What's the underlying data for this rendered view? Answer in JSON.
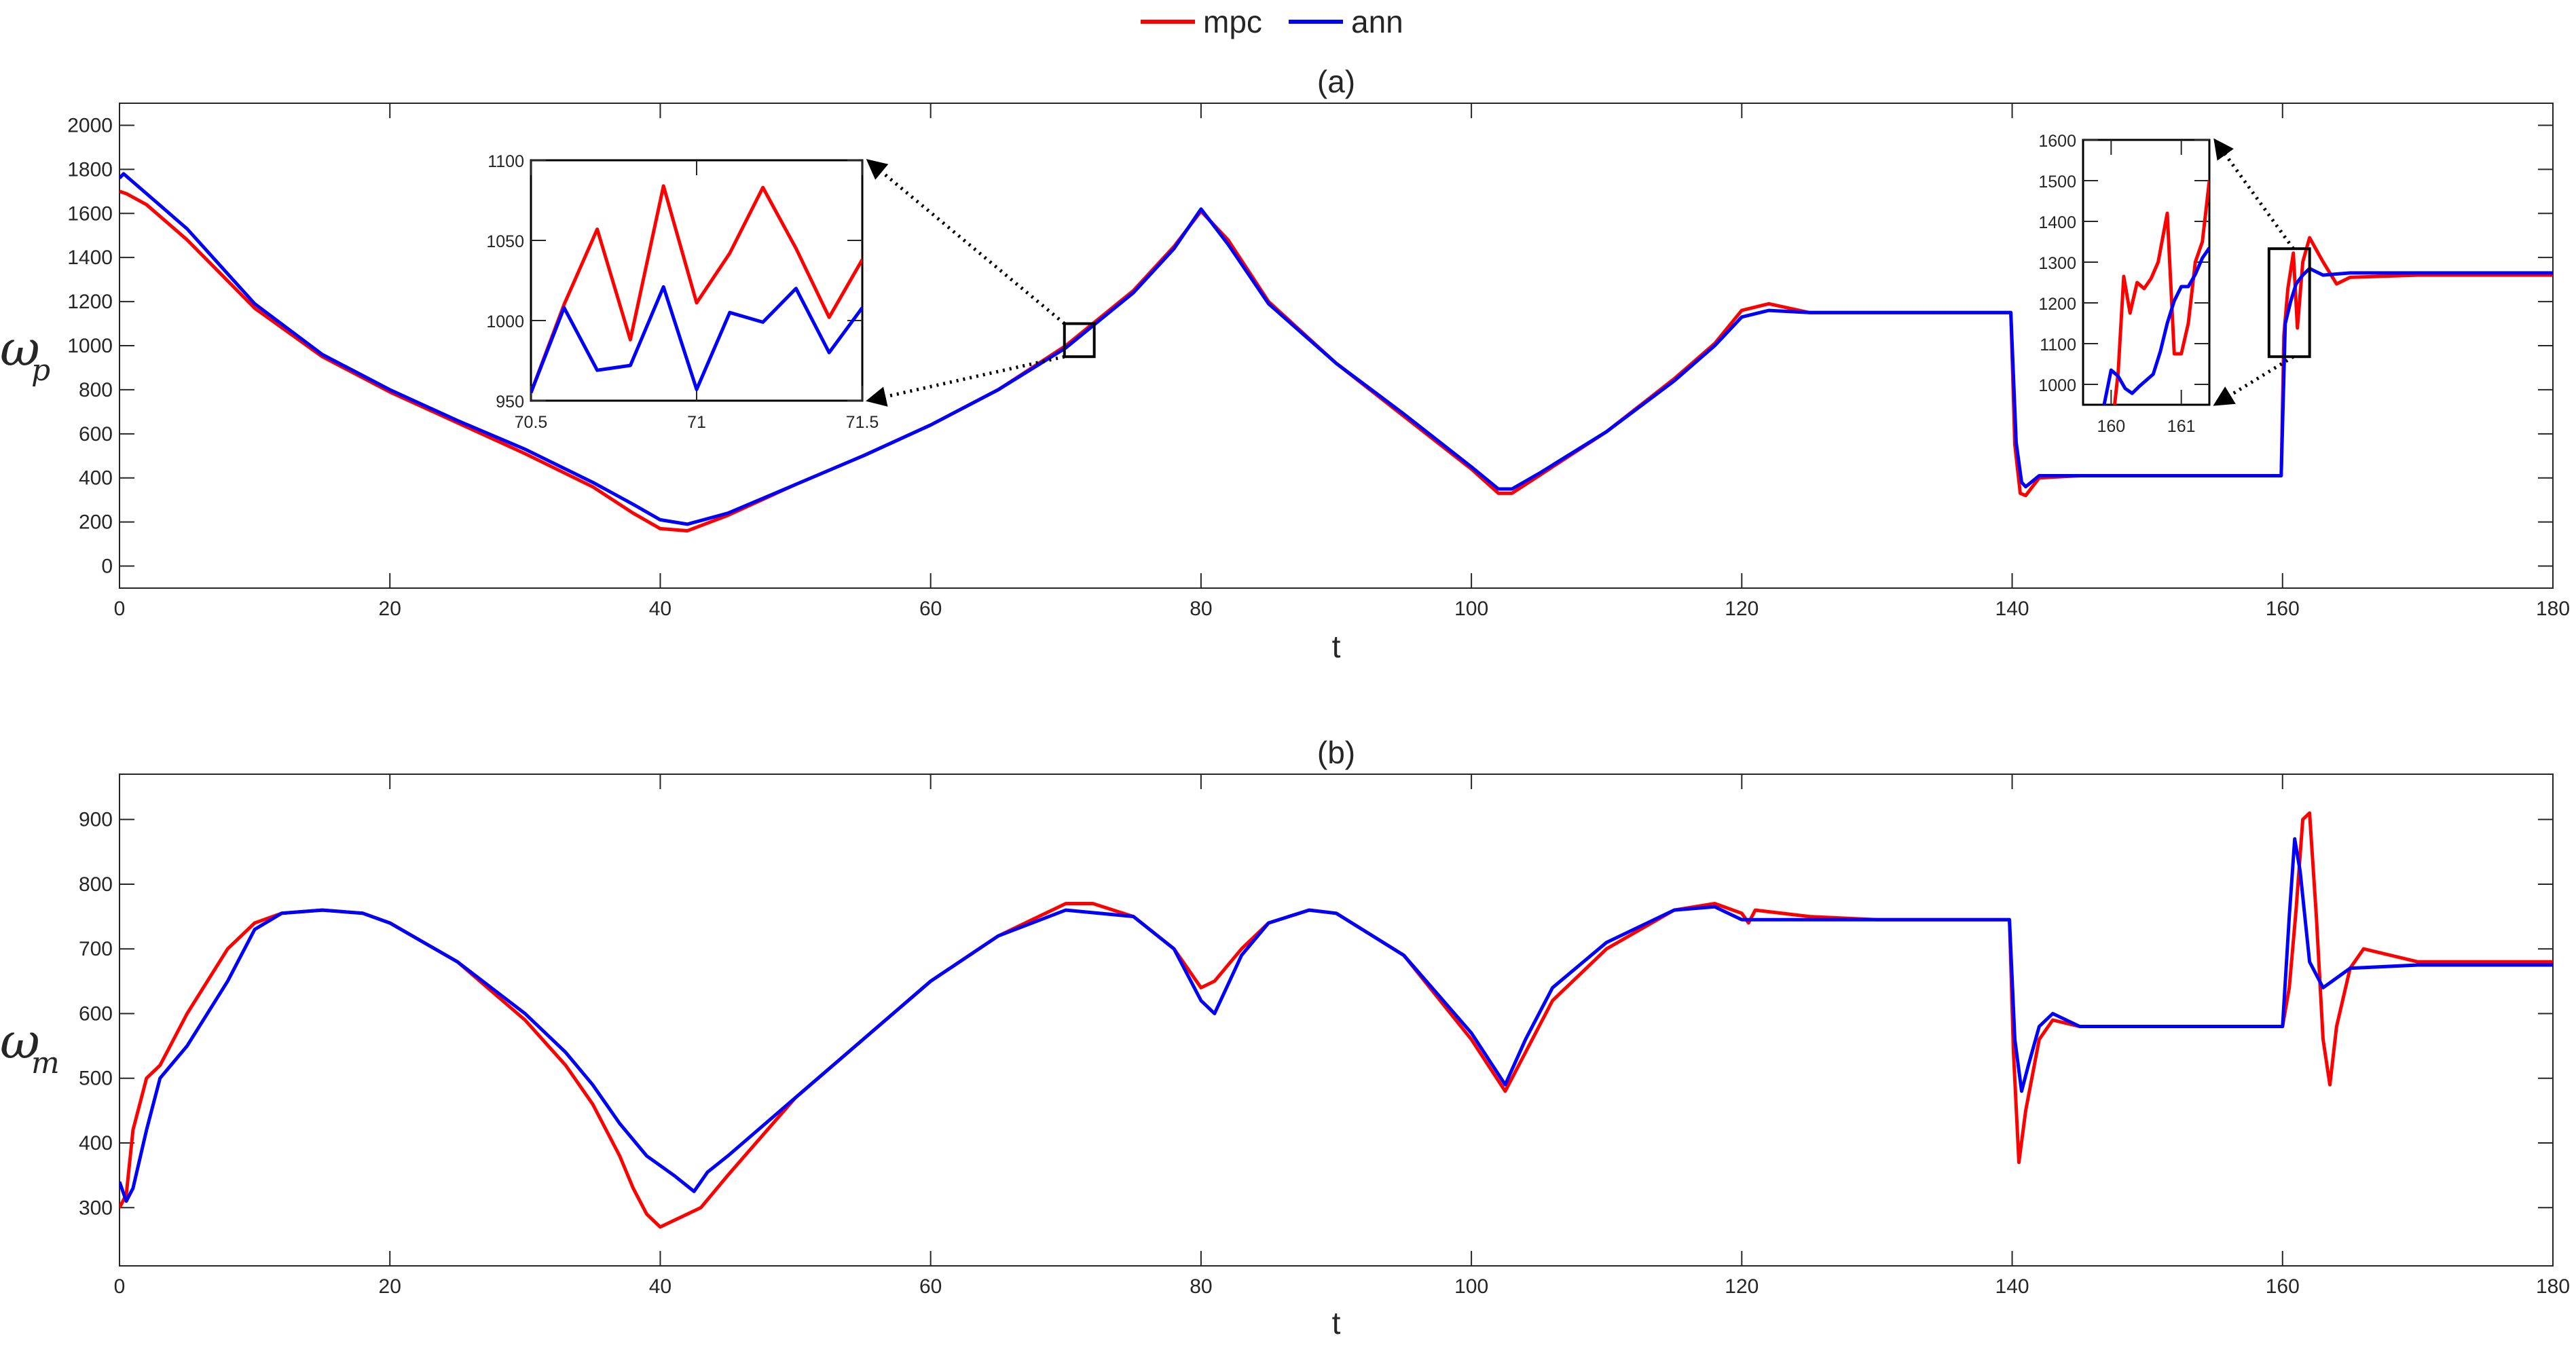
{
  "legend": {
    "entries": [
      {
        "label": "mpc",
        "color": "#ff0000"
      },
      {
        "label": "ann",
        "color": "#0000ff"
      }
    ]
  },
  "chart_data": [
    {
      "type": "line",
      "title": "(a)",
      "xlabel": "t",
      "ylabel": "ω",
      "ylabel_sub": "p",
      "xlim": [
        0,
        180
      ],
      "ylim": [
        -100,
        2100
      ],
      "xticks": [
        0,
        20,
        40,
        60,
        80,
        100,
        120,
        140,
        160,
        180
      ],
      "yticks": [
        0,
        200,
        400,
        600,
        800,
        1000,
        1200,
        1400,
        1600,
        1800,
        2000
      ],
      "grid": false,
      "series": [
        {
          "name": "mpc",
          "color": "#ff0000",
          "x": [
            0,
            0.5,
            2,
            5,
            10,
            15,
            20,
            25,
            30,
            35,
            38,
            40,
            42,
            45,
            50,
            55,
            60,
            65,
            70,
            75,
            78,
            80,
            82,
            85,
            90,
            95,
            100,
            102,
            103,
            105,
            110,
            115,
            118,
            120,
            122,
            125,
            130,
            135,
            139.9,
            140.2,
            140.6,
            141,
            142,
            145,
            150,
            155,
            159.9,
            160.1,
            160.4,
            160.8,
            161.1,
            161.5,
            162,
            163,
            164,
            165,
            170,
            175,
            180
          ],
          "y": [
            1700,
            1690,
            1640,
            1480,
            1170,
            950,
            790,
            650,
            510,
            360,
            240,
            170,
            160,
            230,
            370,
            500,
            640,
            800,
            1000,
            1250,
            1450,
            1610,
            1480,
            1200,
            920,
            680,
            440,
            330,
            330,
            410,
            610,
            850,
            1010,
            1160,
            1190,
            1150,
            1150,
            1150,
            1150,
            550,
            330,
            320,
            400,
            410,
            410,
            410,
            410,
            1050,
            1260,
            1420,
            1080,
            1380,
            1490,
            1380,
            1280,
            1310,
            1320,
            1320,
            1320
          ]
        },
        {
          "name": "ann",
          "color": "#0000ff",
          "x": [
            0,
            0.3,
            2,
            5,
            10,
            15,
            20,
            25,
            30,
            35,
            38,
            40,
            42,
            45,
            50,
            55,
            60,
            65,
            70,
            75,
            78,
            80,
            82,
            85,
            90,
            95,
            100,
            102,
            103,
            105,
            110,
            115,
            118,
            120,
            122,
            125,
            130,
            135,
            139.9,
            140.3,
            140.7,
            141,
            142,
            145,
            150,
            155,
            159.9,
            160.2,
            160.6,
            161,
            161.5,
            162,
            163,
            165,
            170,
            175,
            180
          ],
          "y": [
            1760,
            1780,
            1690,
            1530,
            1190,
            960,
            800,
            660,
            530,
            380,
            280,
            210,
            190,
            240,
            370,
            500,
            640,
            800,
            990,
            1240,
            1440,
            1620,
            1460,
            1190,
            920,
            690,
            450,
            350,
            350,
            420,
            610,
            840,
            1000,
            1130,
            1160,
            1150,
            1150,
            1150,
            1150,
            560,
            380,
            360,
            410,
            410,
            410,
            410,
            410,
            1100,
            1200,
            1280,
            1320,
            1350,
            1320,
            1330,
            1330,
            1330,
            1330
          ]
        }
      ],
      "insets": [
        {
          "xlim": [
            70.5,
            71.5
          ],
          "ylim": [
            950,
            1100
          ],
          "xticks": [
            70.5,
            71,
            71.5
          ],
          "xtick_labels": [
            "70.5",
            "71",
            "71.5"
          ],
          "yticks": [
            950,
            1000,
            1050,
            1100
          ],
          "source_box": {
            "xlim": [
              70.5,
              71.5
            ],
            "ylim": [
              950,
              1100
            ]
          },
          "series": [
            {
              "color": "#ff0000",
              "x": [
                70.5,
                70.6,
                70.7,
                70.8,
                70.9,
                71.0,
                71.1,
                71.2,
                71.3,
                71.4,
                71.5
              ],
              "y": [
                955,
                1010,
                1057,
                988,
                1084,
                1011,
                1042,
                1083,
                1045,
                1002,
                1038
              ]
            },
            {
              "color": "#0000ff",
              "x": [
                70.5,
                70.6,
                70.7,
                70.8,
                70.9,
                71.0,
                71.1,
                71.2,
                71.3,
                71.4,
                71.5
              ],
              "y": [
                955,
                1008,
                969,
                972,
                1021,
                957,
                1005,
                999,
                1020,
                980,
                1008
              ]
            }
          ]
        },
        {
          "xlim": [
            159.6,
            161.4
          ],
          "ylim": [
            950,
            1600
          ],
          "xticks": [
            160,
            161
          ],
          "xtick_labels": [
            "160",
            "161"
          ],
          "yticks": [
            1000,
            1100,
            1200,
            1300,
            1400,
            1500,
            1600
          ],
          "source_box": {
            "xlim": [
              159.6,
              161.4
            ],
            "ylim": [
              950,
              1440
            ]
          },
          "series": [
            {
              "color": "#ff0000",
              "x": [
                160.05,
                160.1,
                160.18,
                160.27,
                160.37,
                160.47,
                160.57,
                160.67,
                160.8,
                160.9,
                161.0,
                161.1,
                161.2,
                161.3,
                161.4
              ],
              "y": [
                950,
                1030,
                1265,
                1175,
                1250,
                1235,
                1260,
                1300,
                1420,
                1075,
                1075,
                1150,
                1300,
                1350,
                1500
              ]
            },
            {
              "color": "#0000ff",
              "x": [
                159.9,
                160.0,
                160.1,
                160.2,
                160.3,
                160.4,
                160.5,
                160.6,
                160.7,
                160.8,
                160.9,
                161.0,
                161.1,
                161.2,
                161.3,
                161.4
              ],
              "y": [
                950,
                1035,
                1020,
                990,
                978,
                995,
                1010,
                1025,
                1080,
                1150,
                1205,
                1240,
                1240,
                1270,
                1310,
                1335
              ]
            }
          ]
        }
      ]
    },
    {
      "type": "line",
      "title": "(b)",
      "xlabel": "t",
      "ylabel": "ω",
      "ylabel_sub": "m",
      "xlim": [
        0,
        180
      ],
      "ylim": [
        210,
        970
      ],
      "xticks": [
        0,
        20,
        40,
        60,
        80,
        100,
        120,
        140,
        160,
        180
      ],
      "yticks": [
        300,
        400,
        500,
        600,
        700,
        800,
        900
      ],
      "grid": false,
      "series": [
        {
          "name": "mpc",
          "color": "#ff0000",
          "x": [
            0,
            0.5,
            1,
            2,
            3,
            5,
            8,
            10,
            12,
            15,
            18,
            20,
            25,
            30,
            33,
            35,
            37,
            38,
            39,
            40,
            41,
            43,
            45,
            50,
            55,
            60,
            65,
            70,
            72,
            75,
            78,
            80,
            81,
            83,
            85,
            88,
            90,
            95,
            100,
            102.5,
            104,
            106,
            110,
            115,
            118,
            120,
            120.5,
            121,
            125,
            130,
            135,
            139.8,
            140.1,
            140.5,
            141,
            142,
            143,
            145,
            150,
            155,
            160,
            160.5,
            161,
            161.5,
            162,
            162.5,
            163,
            163.5,
            164,
            165,
            166,
            170,
            175,
            180
          ],
          "y": [
            300,
            320,
            420,
            500,
            520,
            600,
            700,
            740,
            755,
            760,
            755,
            740,
            680,
            590,
            520,
            460,
            380,
            330,
            290,
            270,
            280,
            300,
            350,
            470,
            560,
            650,
            720,
            770,
            770,
            750,
            700,
            640,
            650,
            700,
            740,
            760,
            755,
            690,
            560,
            480,
            540,
            620,
            700,
            760,
            770,
            755,
            740,
            760,
            750,
            745,
            745,
            745,
            540,
            370,
            450,
            560,
            590,
            580,
            580,
            580,
            580,
            640,
            760,
            900,
            910,
            750,
            560,
            490,
            580,
            670,
            700,
            680,
            680,
            680
          ]
        },
        {
          "name": "ann",
          "color": "#0000ff",
          "x": [
            0,
            0.5,
            1,
            2,
            3,
            5,
            8,
            10,
            12,
            15,
            18,
            20,
            25,
            30,
            33,
            35,
            37,
            39,
            41,
            42.5,
            43.5,
            45,
            50,
            55,
            60,
            65,
            70,
            75,
            78,
            80,
            81,
            83,
            85,
            88,
            90,
            95,
            100,
            102.5,
            104,
            106,
            110,
            115,
            118,
            120,
            125,
            130,
            135,
            139.8,
            140.2,
            140.7,
            141.2,
            142,
            143,
            145,
            150,
            155,
            160,
            160.5,
            160.9,
            161.3,
            162,
            163,
            165,
            170,
            175,
            180
          ],
          "y": [
            340,
            310,
            330,
            420,
            500,
            550,
            650,
            730,
            755,
            760,
            755,
            740,
            680,
            600,
            540,
            490,
            430,
            380,
            350,
            325,
            355,
            380,
            470,
            560,
            650,
            720,
            760,
            750,
            700,
            620,
            600,
            690,
            740,
            760,
            755,
            690,
            570,
            490,
            560,
            640,
            710,
            760,
            765,
            745,
            745,
            745,
            745,
            745,
            560,
            480,
            520,
            580,
            600,
            580,
            580,
            580,
            580,
            750,
            870,
            820,
            680,
            640,
            670,
            675,
            675,
            675
          ]
        }
      ]
    }
  ]
}
